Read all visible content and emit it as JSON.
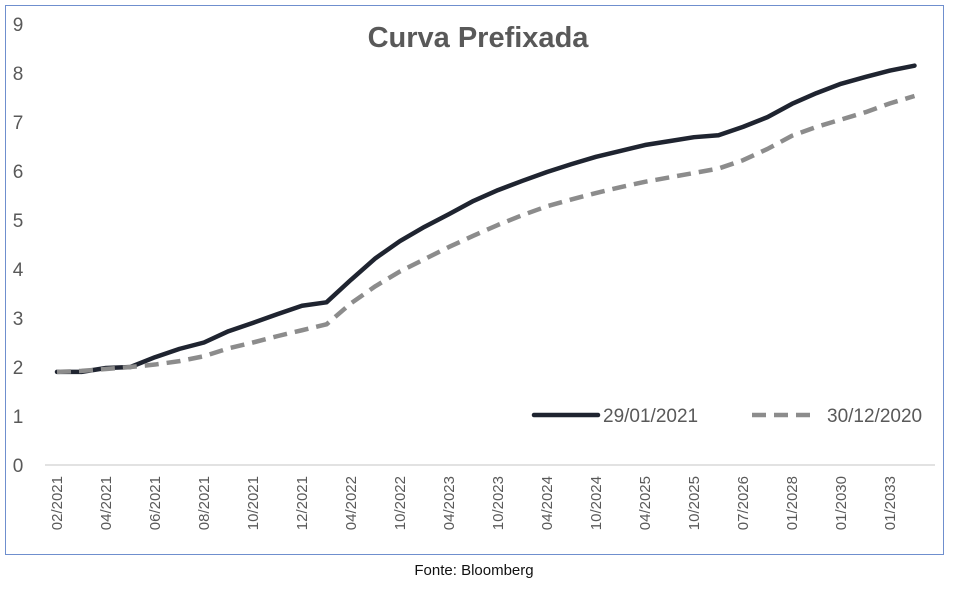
{
  "chart_data": {
    "type": "line",
    "title": "Curva Prefixada",
    "xlabel": "",
    "ylabel": "",
    "ylim": [
      0,
      9
    ],
    "yticks": [
      0,
      1,
      2,
      3,
      4,
      5,
      6,
      7,
      8,
      9
    ],
    "grid": false,
    "legend_position": "bottom-right",
    "tick_labels": [
      "02/2021",
      "04/2021",
      "06/2021",
      "08/2021",
      "10/2021",
      "12/2021",
      "04/2022",
      "10/2022",
      "04/2023",
      "10/2023",
      "04/2024",
      "10/2024",
      "04/2025",
      "10/2025",
      "07/2026",
      "01/2028",
      "01/2030",
      "01/2033"
    ],
    "series": [
      {
        "name": "29/01/2021",
        "color": "#1f2430",
        "style": "solid",
        "values": [
          1.9,
          1.9,
          1.98,
          2.0,
          2.2,
          2.37,
          2.5,
          2.73,
          2.9,
          3.08,
          3.25,
          3.32,
          3.78,
          4.22,
          4.57,
          4.86,
          5.12,
          5.39,
          5.61,
          5.8,
          5.98,
          6.14,
          6.29,
          6.41,
          6.53,
          6.61,
          6.69,
          6.73,
          6.9,
          7.1,
          7.37,
          7.59,
          7.78,
          7.92,
          8.05,
          8.15
        ]
      },
      {
        "name": "30/12/2020",
        "color": "#8c8c8c",
        "style": "dashed",
        "values": [
          1.9,
          1.92,
          1.96,
          2.0,
          2.05,
          2.12,
          2.22,
          2.38,
          2.5,
          2.63,
          2.75,
          2.87,
          3.3,
          3.65,
          3.95,
          4.2,
          4.45,
          4.68,
          4.9,
          5.1,
          5.28,
          5.42,
          5.55,
          5.67,
          5.78,
          5.87,
          5.96,
          6.05,
          6.22,
          6.45,
          6.72,
          6.9,
          7.05,
          7.2,
          7.38,
          7.53
        ]
      }
    ]
  },
  "source": "Fonte: Bloomberg"
}
